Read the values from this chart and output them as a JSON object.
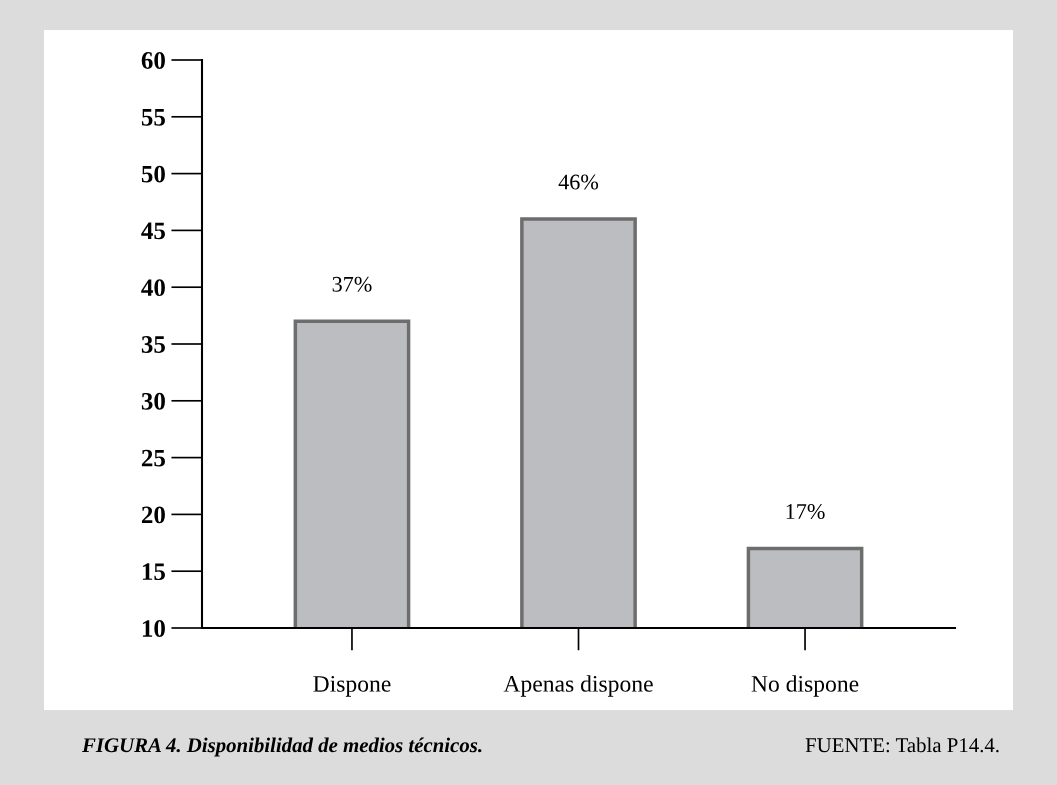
{
  "chart_data": {
    "type": "bar",
    "categories": [
      "Dispone",
      "Apenas dispone",
      "No dispone"
    ],
    "values": [
      37,
      46,
      17
    ],
    "value_labels": [
      "37%",
      "46%",
      "17%"
    ],
    "color": "#bcbdc1",
    "ylim": [
      10,
      60
    ],
    "yticks": [
      10,
      15,
      20,
      25,
      30,
      35,
      40,
      45,
      50,
      55,
      60
    ],
    "grid": false,
    "legend": false,
    "annotations": [
      "FIGURA 4. Disponibilidad de medios técnicos.",
      "FUENTE: Tabla P14.4."
    ]
  }
}
